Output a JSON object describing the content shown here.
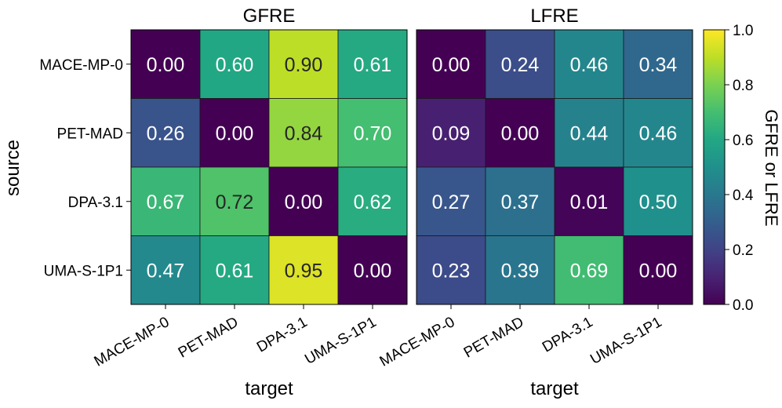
{
  "chart_data": {
    "type": "heatmap",
    "ylabel": "source",
    "xlabel": "target",
    "colorbar": {
      "label": "GFRE or LFRE",
      "range": [
        0.0,
        1.0
      ],
      "ticks": [
        "0.0",
        "0.2",
        "0.4",
        "0.6",
        "0.8",
        "1.0"
      ],
      "colormap": "viridis"
    },
    "rows": [
      "MACE-MP-0",
      "PET-MAD",
      "DPA-3.1",
      "UMA-S-1P1"
    ],
    "columns": [
      "MACE-MP-0",
      "PET-MAD",
      "DPA-3.1",
      "UMA-S-1P1"
    ],
    "panels": [
      {
        "title": "GFRE",
        "values": [
          [
            0.0,
            0.6,
            0.9,
            0.61
          ],
          [
            0.26,
            0.0,
            0.84,
            0.7
          ],
          [
            0.67,
            0.72,
            0.0,
            0.62
          ],
          [
            0.47,
            0.61,
            0.95,
            0.0
          ]
        ]
      },
      {
        "title": "LFRE",
        "values": [
          [
            0.0,
            0.24,
            0.46,
            0.34
          ],
          [
            0.09,
            0.0,
            0.44,
            0.46
          ],
          [
            0.27,
            0.37,
            0.01,
            0.5
          ],
          [
            0.23,
            0.39,
            0.69,
            0.0
          ]
        ]
      }
    ]
  }
}
